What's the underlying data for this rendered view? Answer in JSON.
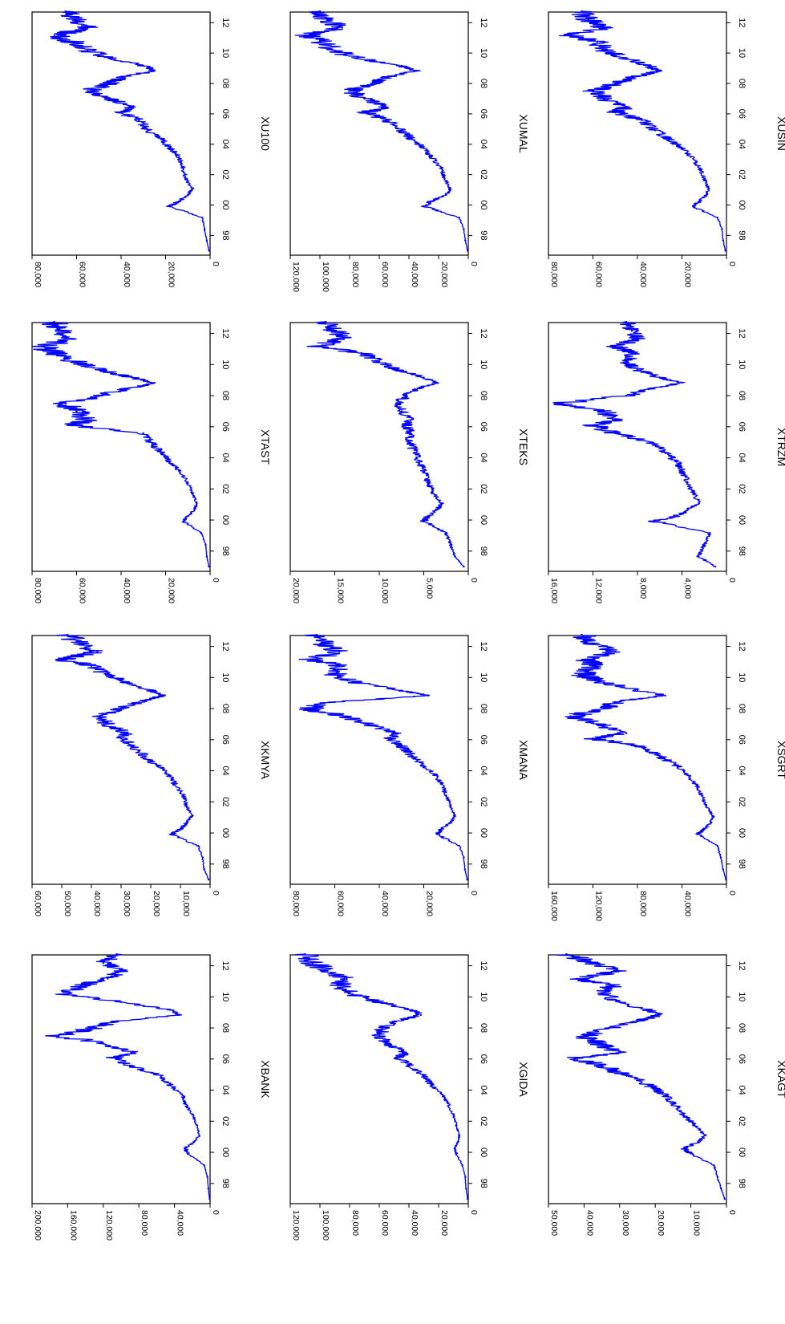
{
  "line_color": "#0000ff",
  "chart_data": [
    {
      "type": "line",
      "title": "XBANK",
      "x": [
        "1997-01",
        "1997-09",
        "1998-06",
        "1999-03",
        "1999-12",
        "2000-04",
        "2000-09",
        "2001-02",
        "2001-10",
        "2002-06",
        "2003-03",
        "2003-10",
        "2004-05",
        "2004-12",
        "2005-08",
        "2006-02",
        "2006-06",
        "2007-01",
        "2007-07",
        "2008-01",
        "2008-06",
        "2008-11",
        "2009-03",
        "2009-09",
        "2010-03",
        "2010-10",
        "2011-03",
        "2011-09",
        "2012-03",
        "2012-10"
      ],
      "y": [
        500,
        2000,
        3000,
        6500,
        25000,
        28000,
        18000,
        12000,
        15000,
        20000,
        28000,
        32000,
        45000,
        55000,
        90000,
        110000,
        85000,
        120000,
        170000,
        130000,
        110000,
        35000,
        45000,
        100000,
        160000,
        145000,
        115000,
        100000,
        120000,
        105000
      ],
      "ylim": [
        0,
        200000
      ],
      "yticks": [
        "0",
        "40,000",
        "80,000",
        "120,000",
        "160,000",
        "200,000"
      ],
      "xticks": [
        "98",
        "00",
        "02",
        "04",
        "06",
        "08",
        "10",
        "12"
      ]
    },
    {
      "type": "line",
      "title": "XGIDA",
      "x": [
        "1997-01",
        "1997-09",
        "1998-06",
        "1999-03",
        "1999-12",
        "2000-04",
        "2000-09",
        "2001-02",
        "2001-10",
        "2002-06",
        "2003-03",
        "2003-10",
        "2004-05",
        "2004-12",
        "2005-08",
        "2006-02",
        "2006-06",
        "2007-01",
        "2007-07",
        "2008-01",
        "2008-06",
        "2008-11",
        "2009-03",
        "2009-09",
        "2010-03",
        "2010-10",
        "2011-03",
        "2011-09",
        "2012-03",
        "2012-10"
      ],
      "y": [
        500,
        1500,
        2000,
        4000,
        8000,
        9000,
        7000,
        6000,
        8000,
        10000,
        14000,
        18000,
        25000,
        30000,
        40000,
        48000,
        42000,
        55000,
        60000,
        58000,
        50000,
        32000,
        38000,
        60000,
        78000,
        88000,
        82000,
        95000,
        105000,
        110000
      ],
      "ylim": [
        0,
        120000
      ],
      "yticks": [
        "0",
        "20,000",
        "40,000",
        "60,000",
        "80,000",
        "100,000",
        "120,000"
      ],
      "xticks": [
        "98",
        "00",
        "02",
        "04",
        "06",
        "08",
        "10",
        "12"
      ]
    },
    {
      "type": "line",
      "title": "XKAGT",
      "x": [
        "1997-01",
        "1997-09",
        "1998-06",
        "1999-03",
        "1999-12",
        "2000-04",
        "2000-09",
        "2001-02",
        "2001-10",
        "2002-06",
        "2003-03",
        "2003-10",
        "2004-05",
        "2004-12",
        "2005-08",
        "2006-02",
        "2006-06",
        "2007-01",
        "2007-07",
        "2008-01",
        "2008-06",
        "2008-11",
        "2009-03",
        "2009-09",
        "2010-03",
        "2010-10",
        "2011-03",
        "2011-09",
        "2012-03",
        "2012-10"
      ],
      "y": [
        500,
        1500,
        2500,
        3500,
        10000,
        12000,
        8000,
        6000,
        9000,
        12000,
        15000,
        18000,
        22000,
        28000,
        35000,
        42000,
        30000,
        36000,
        40000,
        33000,
        25000,
        19000,
        22000,
        30000,
        35000,
        32000,
        42000,
        30000,
        38000,
        45000
      ],
      "ylim": [
        0,
        50000
      ],
      "yticks": [
        "0",
        "10,000",
        "20,000",
        "30,000",
        "40,000",
        "50,000"
      ],
      "xticks": [
        "98",
        "00",
        "02",
        "04",
        "06",
        "08",
        "10",
        "12"
      ]
    },
    {
      "type": "line",
      "title": "XKMYA",
      "x": [
        "1997-01",
        "1997-09",
        "1998-06",
        "1999-03",
        "1999-12",
        "2000-04",
        "2000-09",
        "2001-02",
        "2001-10",
        "2002-06",
        "2003-03",
        "2003-10",
        "2004-05",
        "2004-12",
        "2005-08",
        "2006-02",
        "2006-06",
        "2007-01",
        "2007-07",
        "2008-01",
        "2008-06",
        "2008-11",
        "2009-03",
        "2009-09",
        "2010-03",
        "2010-10",
        "2011-03",
        "2011-09",
        "2012-03",
        "2012-10"
      ],
      "y": [
        500,
        2000,
        2500,
        4000,
        13000,
        10000,
        8000,
        6000,
        8000,
        9000,
        12000,
        14000,
        18000,
        22000,
        26000,
        30000,
        28000,
        35000,
        38000,
        30000,
        24000,
        16000,
        20000,
        28000,
        35000,
        40000,
        50000,
        38000,
        44000,
        48000
      ],
      "ylim": [
        0,
        60000
      ],
      "yticks": [
        "0",
        "10,000",
        "20,000",
        "30,000",
        "40,000",
        "50,000",
        "60,000"
      ],
      "xticks": [
        "98",
        "00",
        "02",
        "04",
        "06",
        "08",
        "10",
        "12"
      ]
    },
    {
      "type": "line",
      "title": "XMANA",
      "x": [
        "1997-01",
        "1997-09",
        "1998-06",
        "1999-03",
        "1999-12",
        "2000-04",
        "2000-09",
        "2001-02",
        "2001-10",
        "2002-06",
        "2003-03",
        "2003-10",
        "2004-05",
        "2004-12",
        "2005-08",
        "2006-02",
        "2006-06",
        "2007-01",
        "2007-07",
        "2008-01",
        "2008-06",
        "2008-11",
        "2009-03",
        "2009-09",
        "2010-03",
        "2010-10",
        "2011-03",
        "2011-09",
        "2012-03",
        "2012-10"
      ],
      "y": [
        500,
        1500,
        2000,
        4000,
        14000,
        12000,
        8000,
        6000,
        8000,
        10000,
        12000,
        15000,
        20000,
        25000,
        30000,
        35000,
        32000,
        45000,
        55000,
        72000,
        60000,
        18000,
        30000,
        50000,
        60000,
        58000,
        70000,
        58000,
        65000,
        68000
      ],
      "ylim": [
        0,
        80000
      ],
      "yticks": [
        "0",
        "20,000",
        "40,000",
        "60,000",
        "80,000"
      ],
      "xticks": [
        "98",
        "00",
        "02",
        "04",
        "06",
        "08",
        "10",
        "12"
      ]
    },
    {
      "type": "line",
      "title": "XSGRT",
      "x": [
        "1997-01",
        "1997-09",
        "1998-06",
        "1999-03",
        "1999-12",
        "2000-04",
        "2000-09",
        "2001-02",
        "2001-10",
        "2002-06",
        "2003-03",
        "2003-10",
        "2004-05",
        "2004-12",
        "2005-08",
        "2006-02",
        "2006-06",
        "2007-01",
        "2007-07",
        "2008-01",
        "2008-06",
        "2008-11",
        "2009-03",
        "2009-09",
        "2010-03",
        "2010-10",
        "2011-03",
        "2011-09",
        "2012-03",
        "2012-10"
      ],
      "y": [
        500,
        3000,
        5000,
        8000,
        26000,
        20000,
        14000,
        12000,
        18000,
        22000,
        28000,
        35000,
        45000,
        60000,
        80000,
        120000,
        90000,
        115000,
        140000,
        110000,
        100000,
        55000,
        80000,
        110000,
        130000,
        120000,
        125000,
        100000,
        120000,
        130000
      ],
      "ylim": [
        0,
        160000
      ],
      "yticks": [
        "0",
        "40,000",
        "80,000",
        "120,000",
        "160,000"
      ],
      "xticks": [
        "98",
        "00",
        "02",
        "04",
        "06",
        "08",
        "10",
        "12"
      ]
    },
    {
      "type": "line",
      "title": "XTAST",
      "x": [
        "1997-01",
        "1997-09",
        "1998-06",
        "1999-03",
        "1999-12",
        "2000-04",
        "2000-09",
        "2001-02",
        "2001-10",
        "2002-06",
        "2003-03",
        "2003-10",
        "2004-05",
        "2004-12",
        "2005-08",
        "2006-02",
        "2006-06",
        "2007-01",
        "2007-07",
        "2008-01",
        "2008-06",
        "2008-11",
        "2009-03",
        "2009-09",
        "2010-03",
        "2010-10",
        "2011-03",
        "2011-09",
        "2012-03",
        "2012-10"
      ],
      "y": [
        500,
        1500,
        2000,
        4000,
        12000,
        10000,
        7000,
        6000,
        8000,
        10000,
        14000,
        18000,
        22000,
        26000,
        30000,
        62000,
        55000,
        60000,
        65000,
        50000,
        38000,
        25000,
        35000,
        50000,
        60000,
        70000,
        75000,
        62000,
        68000,
        70000
      ],
      "ylim": [
        0,
        80000
      ],
      "yticks": [
        "0",
        "20,000",
        "40,000",
        "60,000",
        "80,000"
      ],
      "xticks": [
        "98",
        "00",
        "02",
        "04",
        "06",
        "08",
        "10",
        "12"
      ]
    },
    {
      "type": "line",
      "title": "XTEKS",
      "x": [
        "1997-01",
        "1997-09",
        "1998-06",
        "1999-03",
        "1999-12",
        "2000-04",
        "2000-09",
        "2001-02",
        "2001-10",
        "2002-06",
        "2003-03",
        "2003-10",
        "2004-05",
        "2004-12",
        "2005-08",
        "2006-02",
        "2006-06",
        "2007-01",
        "2007-07",
        "2008-01",
        "2008-06",
        "2008-11",
        "2009-03",
        "2009-09",
        "2010-03",
        "2010-10",
        "2011-03",
        "2011-09",
        "2012-03",
        "2012-10"
      ],
      "y": [
        500,
        1500,
        2000,
        2500,
        5000,
        4500,
        3500,
        3000,
        4000,
        4500,
        5000,
        5500,
        6000,
        6500,
        6500,
        7000,
        6500,
        7500,
        8000,
        7000,
        6000,
        3500,
        5000,
        8000,
        10000,
        12000,
        17000,
        14000,
        15000,
        16000
      ],
      "ylim": [
        0,
        20000
      ],
      "yticks": [
        "0",
        "5,000",
        "10,000",
        "15,000",
        "20,000"
      ],
      "xticks": [
        "98",
        "00",
        "02",
        "04",
        "06",
        "08",
        "10",
        "12"
      ]
    },
    {
      "type": "line",
      "title": "XTRZM",
      "x": [
        "1997-01",
        "1997-09",
        "1998-06",
        "1999-03",
        "1999-12",
        "2000-04",
        "2000-09",
        "2001-02",
        "2001-10",
        "2002-06",
        "2003-03",
        "2003-10",
        "2004-05",
        "2004-12",
        "2005-08",
        "2006-02",
        "2006-06",
        "2007-01",
        "2007-07",
        "2008-01",
        "2008-06",
        "2008-11",
        "2009-03",
        "2009-09",
        "2010-03",
        "2010-10",
        "2011-03",
        "2011-09",
        "2012-03",
        "2012-10"
      ],
      "y": [
        1000,
        2500,
        2000,
        1500,
        6500,
        4500,
        3500,
        2500,
        3000,
        3500,
        4000,
        4500,
        5500,
        6500,
        10000,
        12000,
        10000,
        11000,
        15000,
        9000,
        7000,
        4000,
        6000,
        8000,
        9000,
        8500,
        10000,
        8000,
        8500,
        9000
      ],
      "ylim": [
        0,
        16000
      ],
      "yticks": [
        "0",
        "4,000",
        "8,000",
        "12,000",
        "16,000"
      ],
      "xticks": [
        "98",
        "00",
        "02",
        "04",
        "06",
        "08",
        "10",
        "12"
      ]
    },
    {
      "type": "line",
      "title": "XU100",
      "x": [
        "1997-01",
        "1997-09",
        "1998-06",
        "1999-03",
        "1999-12",
        "2000-04",
        "2000-09",
        "2001-02",
        "2001-10",
        "2002-06",
        "2003-03",
        "2003-10",
        "2004-05",
        "2004-12",
        "2005-08",
        "2006-02",
        "2006-06",
        "2007-01",
        "2007-07",
        "2008-01",
        "2008-06",
        "2008-11",
        "2009-03",
        "2009-09",
        "2010-03",
        "2010-10",
        "2011-03",
        "2011-09",
        "2012-03",
        "2012-10"
      ],
      "y": [
        500,
        1500,
        2500,
        3500,
        18000,
        14000,
        10000,
        8000,
        11000,
        12000,
        14000,
        18000,
        22000,
        28000,
        32000,
        40000,
        35000,
        45000,
        55000,
        45000,
        40000,
        25000,
        30000,
        45000,
        55000,
        62000,
        70000,
        55000,
        60000,
        65000
      ],
      "ylim": [
        0,
        80000
      ],
      "yticks": [
        "0",
        "20,000",
        "40,000",
        "60,000",
        "80,000"
      ],
      "xticks": [
        "98",
        "00",
        "02",
        "04",
        "06",
        "08",
        "10",
        "12"
      ]
    },
    {
      "type": "line",
      "title": "XUMAL",
      "x": [
        "1997-01",
        "1997-09",
        "1998-06",
        "1999-03",
        "1999-12",
        "2000-04",
        "2000-09",
        "2001-02",
        "2001-10",
        "2002-06",
        "2003-03",
        "2003-10",
        "2004-05",
        "2004-12",
        "2005-08",
        "2006-02",
        "2006-06",
        "2007-01",
        "2007-07",
        "2008-01",
        "2008-06",
        "2008-11",
        "2009-03",
        "2009-09",
        "2010-03",
        "2010-10",
        "2011-03",
        "2011-09",
        "2012-03",
        "2012-10"
      ],
      "y": [
        500,
        2000,
        3000,
        6000,
        30000,
        25000,
        15000,
        12000,
        16000,
        18000,
        25000,
        30000,
        38000,
        45000,
        55000,
        70000,
        55000,
        70000,
        80000,
        65000,
        55000,
        35000,
        45000,
        75000,
        90000,
        100000,
        110000,
        85000,
        95000,
        100000
      ],
      "ylim": [
        0,
        120000
      ],
      "yticks": [
        "0",
        "20,000",
        "40,000",
        "60,000",
        "80,000",
        "100,000",
        "120,000"
      ],
      "xticks": [
        "98",
        "00",
        "02",
        "04",
        "06",
        "08",
        "10",
        "12"
      ]
    },
    {
      "type": "line",
      "title": "XUSIN",
      "x": [
        "1997-01",
        "1997-09",
        "1998-06",
        "1999-03",
        "1999-12",
        "2000-04",
        "2000-09",
        "2001-02",
        "2001-10",
        "2002-06",
        "2003-03",
        "2003-10",
        "2004-05",
        "2004-12",
        "2005-08",
        "2006-02",
        "2006-06",
        "2007-01",
        "2007-07",
        "2008-01",
        "2008-06",
        "2008-11",
        "2009-03",
        "2009-09",
        "2010-03",
        "2010-10",
        "2011-03",
        "2011-09",
        "2012-03",
        "2012-10"
      ],
      "y": [
        500,
        1500,
        2000,
        4000,
        15000,
        12000,
        9000,
        8000,
        10000,
        12000,
        16000,
        20000,
        26000,
        32000,
        38000,
        50000,
        45000,
        55000,
        60000,
        50000,
        42000,
        30000,
        35000,
        45000,
        55000,
        58000,
        70000,
        55000,
        62000,
        65000
      ],
      "ylim": [
        0,
        80000
      ],
      "yticks": [
        "0",
        "20,000",
        "40,000",
        "60,000",
        "80,000"
      ],
      "xticks": [
        "98",
        "00",
        "02",
        "04",
        "06",
        "08",
        "10",
        "12"
      ]
    }
  ]
}
